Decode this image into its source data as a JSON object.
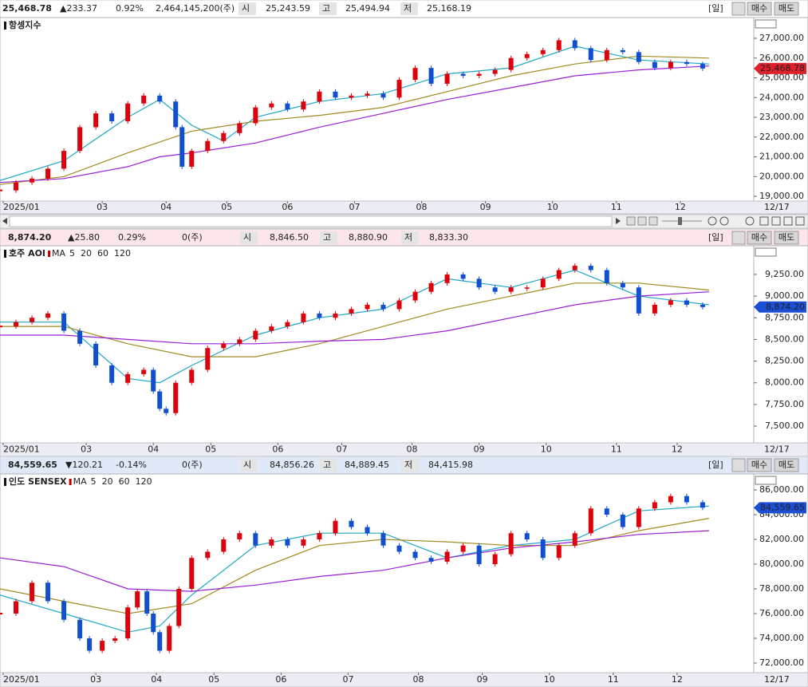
{
  "headers": [
    {
      "price": "25,468.78",
      "change": "▲233.37",
      "change_pct": "0.92%",
      "volume": "2,464,145,200(주)",
      "open_label": "시",
      "open": "25,243.59",
      "high_label": "고",
      "high": "25,494.94",
      "low_label": "저",
      "low": "25,168.19",
      "period": "[일]",
      "buy": "매수",
      "sell": "매도",
      "color": "#d0021b"
    },
    {
      "price": "8,874.20",
      "change": "▲25.80",
      "change_pct": "0.29%",
      "volume": "0(주)",
      "open_label": "시",
      "open": "8,846.50",
      "high_label": "고",
      "high": "8,880.90",
      "low_label": "저",
      "low": "8,833.30",
      "period": "[일]",
      "buy": "매수",
      "sell": "매도",
      "color": "#d0021b"
    },
    {
      "price": "84,559.65",
      "change": "▼120.21",
      "change_pct": "-0.14%",
      "volume": "0(주)",
      "open_label": "시",
      "open": "84,856.26",
      "high_label": "고",
      "high": "84,889.45",
      "low_label": "저",
      "low": "84,415.98",
      "period": "[일]",
      "buy": "매수",
      "sell": "매도",
      "color": "#1c4fd6"
    }
  ],
  "chart_data": [
    {
      "type": "candlestick",
      "title": "항셍지수",
      "price_tag": "25,468.78",
      "tag_color": "#e0202a",
      "end_date": "12/17",
      "up_color": "#e0000a",
      "down_color": "#1050d0",
      "xlim": [
        0,
        236
      ],
      "ylim": [
        18760,
        28050
      ],
      "xticks": [
        {
          "value": 1,
          "label": "2025/01"
        },
        {
          "value": 32,
          "label": "03"
        },
        {
          "value": 52,
          "label": "04"
        },
        {
          "value": 71,
          "label": "05"
        },
        {
          "value": 90,
          "label": "06"
        },
        {
          "value": 111,
          "label": "07"
        },
        {
          "value": 132,
          "label": "08"
        },
        {
          "value": 152,
          "label": "09"
        },
        {
          "value": 173,
          "label": "10"
        },
        {
          "value": 193,
          "label": "11"
        },
        {
          "value": 213,
          "label": "12"
        }
      ],
      "yticks": [
        {
          "value": 19000,
          "label": "19,000.00"
        },
        {
          "value": 20000,
          "label": "20,000.00"
        },
        {
          "value": 21000,
          "label": "21,000.00"
        },
        {
          "value": 22000,
          "label": "22,000.00"
        },
        {
          "value": 23000,
          "label": "23,000.00"
        },
        {
          "value": 24000,
          "label": "24,000.00"
        },
        {
          "value": 25000,
          "label": "25,000.00"
        },
        {
          "value": 26000,
          "label": "26,000.00"
        },
        {
          "value": 27000,
          "label": "27,000.00"
        }
      ],
      "x": [
        0,
        5,
        10,
        15,
        20,
        25,
        30,
        35,
        40,
        45,
        50,
        55,
        57,
        60,
        65,
        70,
        75,
        80,
        85,
        90,
        95,
        100,
        105,
        110,
        115,
        120,
        125,
        130,
        135,
        140,
        145,
        150,
        155,
        160,
        165,
        170,
        175,
        180,
        185,
        190,
        195,
        200,
        205,
        210,
        215,
        220
      ],
      "values": [
        19300,
        19700,
        19900,
        20400,
        21300,
        22500,
        23200,
        22800,
        23700,
        24100,
        23800,
        22500,
        20500,
        21300,
        21800,
        22200,
        22700,
        23500,
        23700,
        23400,
        23800,
        24300,
        24000,
        24100,
        24200,
        24000,
        24900,
        25500,
        24700,
        25200,
        25100,
        25200,
        25400,
        26000,
        26200,
        26400,
        26900,
        26500,
        25900,
        26400,
        26300,
        25800,
        25500,
        25800,
        25700,
        25469
      ],
      "series": [
        {
          "color": "#1fa7c9",
          "x": [
            0,
            20,
            40,
            50,
            60,
            70,
            80,
            100,
            120,
            140,
            160,
            180,
            200,
            222
          ],
          "values": [
            19800,
            20800,
            23000,
            23900,
            22600,
            21800,
            23000,
            23800,
            24200,
            25200,
            25500,
            26600,
            25900,
            25700
          ]
        },
        {
          "color": "#a08a20",
          "x": [
            0,
            20,
            40,
            60,
            80,
            100,
            120,
            140,
            160,
            180,
            200,
            222
          ],
          "values": [
            19600,
            20000,
            21200,
            22300,
            22800,
            23100,
            23500,
            24300,
            25100,
            25700,
            26100,
            26000
          ]
        },
        {
          "color": "#9a1fd4",
          "x": [
            0,
            20,
            40,
            50,
            60,
            80,
            100,
            120,
            140,
            160,
            180,
            200,
            222
          ],
          "values": [
            19700,
            19900,
            20500,
            21000,
            21200,
            21700,
            22500,
            23200,
            23900,
            24500,
            25100,
            25400,
            25600
          ]
        }
      ]
    },
    {
      "type": "candlestick",
      "title": "호주 AOI",
      "price_tag": "8,874.20",
      "tag_color": "#1c4fd6",
      "end_date": "12/17",
      "up_color": "#e0000a",
      "down_color": "#1050d0",
      "legend": {
        "label": "MA",
        "items": [
          {
            "name": "5",
            "color": "#c00000"
          },
          {
            "name": "20",
            "color": "#1fa7c9"
          },
          {
            "name": "60",
            "color": "#a08a20"
          },
          {
            "name": "120",
            "color": "#9a1fd4"
          }
        ]
      },
      "xlim": [
        0,
        236
      ],
      "ylim": [
        7307,
        9581
      ],
      "xticks": [
        {
          "value": 1,
          "label": "2025/01"
        },
        {
          "value": 27,
          "label": "03"
        },
        {
          "value": 48,
          "label": "04"
        },
        {
          "value": 66,
          "label": "05"
        },
        {
          "value": 87,
          "label": "06"
        },
        {
          "value": 107,
          "label": "07"
        },
        {
          "value": 129,
          "label": "08"
        },
        {
          "value": 150,
          "label": "09"
        },
        {
          "value": 171,
          "label": "10"
        },
        {
          "value": 193,
          "label": "11"
        },
        {
          "value": 212,
          "label": "12"
        }
      ],
      "yticks": [
        {
          "value": 7500,
          "label": "7,500.00"
        },
        {
          "value": 7750,
          "label": "7,750.00"
        },
        {
          "value": 8000,
          "label": "8,000.00"
        },
        {
          "value": 8250,
          "label": "8,250.00"
        },
        {
          "value": 8500,
          "label": "8,500.00"
        },
        {
          "value": 8750,
          "label": "8,750.00"
        },
        {
          "value": 9000,
          "label": "9,000.00"
        },
        {
          "value": 9250,
          "label": "9,250.00"
        }
      ],
      "x": [
        0,
        5,
        10,
        15,
        20,
        25,
        30,
        35,
        40,
        45,
        48,
        50,
        52,
        55,
        60,
        65,
        70,
        75,
        80,
        85,
        90,
        95,
        100,
        105,
        110,
        115,
        120,
        125,
        130,
        135,
        140,
        145,
        150,
        155,
        160,
        165,
        170,
        175,
        180,
        185,
        190,
        195,
        200,
        205,
        210,
        215,
        220
      ],
      "values": [
        8650,
        8700,
        8750,
        8800,
        8600,
        8450,
        8200,
        8000,
        8100,
        8150,
        7900,
        7700,
        7650,
        8000,
        8150,
        8400,
        8450,
        8500,
        8600,
        8650,
        8700,
        8800,
        8750,
        8800,
        8850,
        8900,
        8850,
        8950,
        9050,
        9150,
        9250,
        9200,
        9100,
        9050,
        9100,
        9100,
        9200,
        9300,
        9350,
        9300,
        9150,
        9100,
        8800,
        8900,
        8950,
        8900,
        8874
      ],
      "series": [
        {
          "color": "#1fa7c9",
          "x": [
            0,
            20,
            40,
            50,
            60,
            80,
            100,
            120,
            140,
            160,
            180,
            200,
            222
          ],
          "values": [
            8700,
            8700,
            8050,
            8000,
            8200,
            8550,
            8750,
            8850,
            9200,
            9100,
            9300,
            9000,
            8900
          ]
        },
        {
          "color": "#a08a20",
          "x": [
            0,
            20,
            40,
            60,
            80,
            100,
            120,
            140,
            160,
            180,
            200,
            222
          ],
          "values": [
            8650,
            8650,
            8450,
            8300,
            8300,
            8450,
            8650,
            8850,
            9000,
            9150,
            9150,
            9070
          ]
        },
        {
          "color": "#9a1fd4",
          "x": [
            0,
            20,
            40,
            60,
            80,
            100,
            120,
            140,
            160,
            180,
            200,
            222
          ],
          "values": [
            8550,
            8550,
            8500,
            8450,
            8450,
            8480,
            8500,
            8600,
            8750,
            8900,
            9000,
            9050
          ]
        }
      ]
    },
    {
      "type": "candlestick",
      "title": "인도 SENSEX",
      "price_tag": "84,559.65",
      "tag_color": "#1c4fd6",
      "end_date": "12/17",
      "up_color": "#e0000a",
      "down_color": "#1050d0",
      "legend": {
        "label": "MA",
        "items": [
          {
            "name": "5",
            "color": "#c00000"
          },
          {
            "name": "20",
            "color": "#1fa7c9"
          },
          {
            "name": "60",
            "color": "#a08a20"
          },
          {
            "name": "120",
            "color": "#9a1fd4"
          }
        ]
      },
      "xlim": [
        0,
        236
      ],
      "ylim": [
        71226,
        87290
      ],
      "xticks": [
        {
          "value": 1,
          "label": "2025/01"
        },
        {
          "value": 30,
          "label": "03"
        },
        {
          "value": 49,
          "label": "04"
        },
        {
          "value": 67,
          "label": "05"
        },
        {
          "value": 88,
          "label": "06"
        },
        {
          "value": 109,
          "label": "07"
        },
        {
          "value": 131,
          "label": "08"
        },
        {
          "value": 151,
          "label": "09"
        },
        {
          "value": 172,
          "label": "10"
        },
        {
          "value": 192,
          "label": "11"
        },
        {
          "value": 212,
          "label": "12"
        }
      ],
      "yticks": [
        {
          "value": 72000,
          "label": "72,000.00"
        },
        {
          "value": 74000,
          "label": "74,000.00"
        },
        {
          "value": 76000,
          "label": "76,000.00"
        },
        {
          "value": 78000,
          "label": "78,000.00"
        },
        {
          "value": 80000,
          "label": "80,000.00"
        },
        {
          "value": 82000,
          "label": "82,000.00"
        },
        {
          "value": 84000,
          "label": "84,000.00"
        },
        {
          "value": 86000,
          "label": "86,000.00"
        }
      ],
      "x": [
        0,
        5,
        10,
        15,
        20,
        25,
        28,
        32,
        36,
        40,
        43,
        46,
        48,
        50,
        53,
        56,
        60,
        65,
        70,
        75,
        80,
        85,
        90,
        95,
        100,
        105,
        110,
        115,
        120,
        125,
        130,
        135,
        140,
        145,
        150,
        155,
        160,
        165,
        170,
        175,
        180,
        185,
        190,
        195,
        200,
        205,
        210,
        215,
        220
      ],
      "values": [
        76000,
        77000,
        78500,
        77000,
        75500,
        74000,
        73000,
        73800,
        74000,
        76500,
        77800,
        76000,
        74500,
        73000,
        75000,
        78000,
        80500,
        81000,
        82000,
        82500,
        81500,
        82000,
        81500,
        82000,
        82500,
        83500,
        83000,
        82500,
        81500,
        81000,
        80500,
        80200,
        81000,
        81500,
        80000,
        80800,
        82500,
        82000,
        80500,
        81500,
        82500,
        84500,
        84000,
        83000,
        84500,
        85000,
        85500,
        85000,
        84560
      ],
      "series": [
        {
          "color": "#1fa7c9",
          "x": [
            0,
            20,
            40,
            50,
            60,
            80,
            100,
            120,
            140,
            160,
            180,
            200,
            222
          ],
          "values": [
            77500,
            76000,
            74500,
            75000,
            77500,
            81500,
            82500,
            82500,
            80500,
            81500,
            82000,
            84300,
            84700
          ]
        },
        {
          "color": "#a08a20",
          "x": [
            0,
            20,
            40,
            60,
            80,
            100,
            120,
            140,
            160,
            180,
            200,
            222
          ],
          "values": [
            78000,
            77000,
            76000,
            76800,
            79500,
            81500,
            82000,
            81800,
            81500,
            81500,
            82700,
            83700
          ]
        },
        {
          "color": "#9a1fd4",
          "x": [
            0,
            20,
            40,
            60,
            80,
            100,
            120,
            140,
            160,
            180,
            200,
            222
          ],
          "values": [
            80500,
            79800,
            78000,
            77800,
            78300,
            79000,
            79500,
            80500,
            81300,
            81800,
            82400,
            82700
          ]
        }
      ]
    }
  ]
}
